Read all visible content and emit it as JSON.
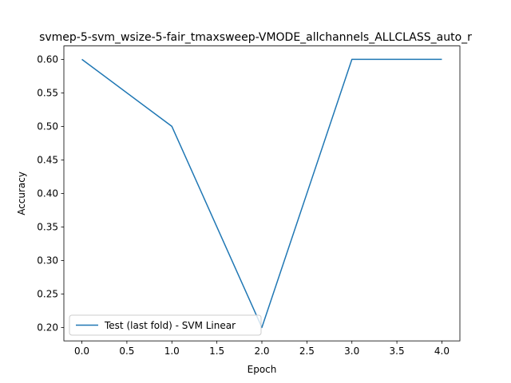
{
  "chart_data": {
    "type": "line",
    "title": "svmep-5-svm_wsize-5-fair_tmaxsweep-VMODE_allchannels_ALLCLASS_auto_r",
    "xlabel": "Epoch",
    "ylabel": "Accuracy",
    "xlim": [
      -0.2,
      4.2
    ],
    "ylim": [
      0.18,
      0.62
    ],
    "xticks": [
      0.0,
      0.5,
      1.0,
      1.5,
      2.0,
      2.5,
      3.0,
      3.5,
      4.0
    ],
    "xtick_labels": [
      "0.0",
      "0.5",
      "1.0",
      "1.5",
      "2.0",
      "2.5",
      "3.0",
      "3.5",
      "4.0"
    ],
    "yticks": [
      0.2,
      0.25,
      0.3,
      0.35,
      0.4,
      0.45,
      0.5,
      0.55,
      0.6
    ],
    "ytick_labels": [
      "0.20",
      "0.25",
      "0.30",
      "0.35",
      "0.40",
      "0.45",
      "0.50",
      "0.55",
      "0.60"
    ],
    "grid": false,
    "legend_position": "lower-left",
    "series": [
      {
        "name": "Test (last fold) - SVM Linear",
        "color": "#1f77b4",
        "x": [
          0,
          1,
          2,
          3,
          4
        ],
        "y": [
          0.6,
          0.5,
          0.2,
          0.6,
          0.6
        ]
      }
    ]
  }
}
